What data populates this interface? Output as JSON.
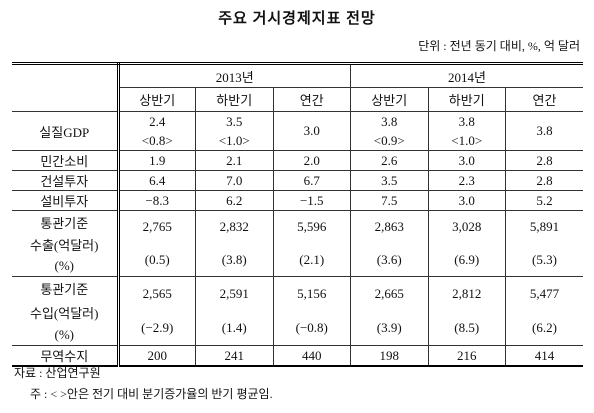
{
  "title": "주요 거시경제지표 전망",
  "unit": "단위 : 전년 동기 대비, %, 억 달러",
  "table": {
    "years": [
      "2013년",
      "2014년"
    ],
    "periods": [
      "상반기",
      "하반기",
      "연간",
      "상반기",
      "하반기",
      "연간"
    ],
    "rows": [
      {
        "label": [
          "실질GDP"
        ],
        "cells": [
          [
            "2.4",
            "<0.8>"
          ],
          [
            "3.5",
            "<1.0>"
          ],
          [
            "3.0"
          ],
          [
            "3.8",
            "<0.9>"
          ],
          [
            "3.8",
            "<1.0>"
          ],
          [
            "3.8"
          ]
        ]
      },
      {
        "label": [
          "민간소비"
        ],
        "cells": [
          [
            "1.9"
          ],
          [
            "2.1"
          ],
          [
            "2.0"
          ],
          [
            "2.6"
          ],
          [
            "3.0"
          ],
          [
            "2.8"
          ]
        ]
      },
      {
        "label": [
          "건설투자"
        ],
        "cells": [
          [
            "6.4"
          ],
          [
            "7.0"
          ],
          [
            "6.7"
          ],
          [
            "3.5"
          ],
          [
            "2.3"
          ],
          [
            "2.8"
          ]
        ]
      },
      {
        "label": [
          "설비투자"
        ],
        "cells": [
          [
            "−8.3"
          ],
          [
            "6.2"
          ],
          [
            "−1.5"
          ],
          [
            "7.5"
          ],
          [
            "3.0"
          ],
          [
            "5.2"
          ]
        ]
      },
      {
        "label": [
          "통관기준",
          "수출(억달러)",
          "(%)"
        ],
        "cells": [
          [
            "2,765",
            "(0.5)"
          ],
          [
            "2,832",
            "(3.8)"
          ],
          [
            "5,596",
            "(2.1)"
          ],
          [
            "2,863",
            "(3.6)"
          ],
          [
            "3,028",
            "(6.9)"
          ],
          [
            "5,891",
            "(5.3)"
          ]
        ]
      },
      {
        "label": [
          "통관기준",
          "수입(억달러)",
          "(%)"
        ],
        "cells": [
          [
            "2,565",
            "(−2.9)"
          ],
          [
            "2,591",
            "(1.4)"
          ],
          [
            "5,156",
            "(−0.8)"
          ],
          [
            "2,665",
            "(3.9)"
          ],
          [
            "2,812",
            "(8.5)"
          ],
          [
            "5,477",
            "(6.2)"
          ]
        ]
      },
      {
        "label": [
          "무역수지"
        ],
        "cells": [
          [
            "200"
          ],
          [
            "241"
          ],
          [
            "440"
          ],
          [
            "198"
          ],
          [
            "216"
          ],
          [
            "414"
          ]
        ]
      }
    ]
  },
  "footer": [
    "자료 : 산업연구원",
    "주 : < >안은 전기 대비 분기증가율의 반기 평균임."
  ]
}
